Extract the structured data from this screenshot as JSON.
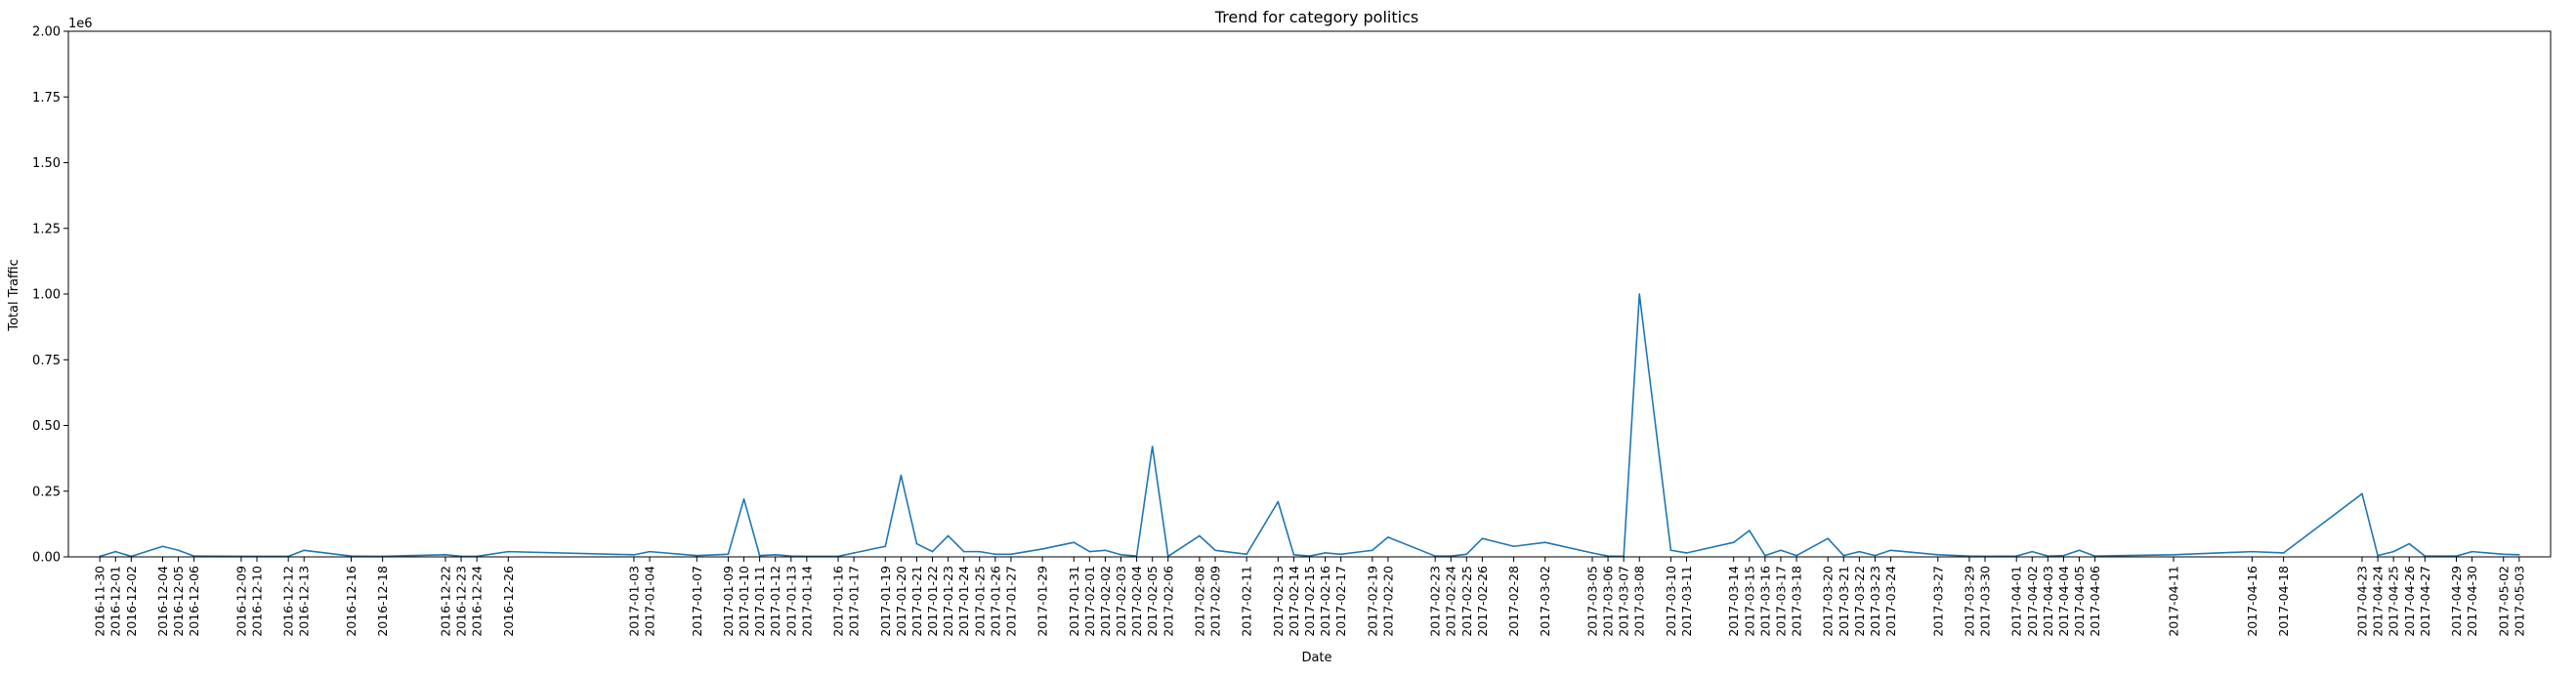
{
  "chart_data": {
    "type": "line",
    "title": "Trend for category politics",
    "xlabel": "Date",
    "ylabel": "Total Traffic",
    "y_offset_label": "1e6",
    "ylim": [
      0,
      2000000
    ],
    "yticks": [
      0,
      250000,
      500000,
      750000,
      1000000,
      1250000,
      1500000,
      1750000,
      2000000
    ],
    "ytick_labels": [
      "0.00",
      "0.25",
      "0.50",
      "0.75",
      "1.00",
      "1.25",
      "1.50",
      "1.75",
      "2.00"
    ],
    "xlim": [
      "2016-11-28",
      "2017-05-05"
    ],
    "grid": false,
    "line_color": "#1f77b4",
    "x": [
      "2016-11-30",
      "2016-12-01",
      "2016-12-02",
      "2016-12-04",
      "2016-12-05",
      "2016-12-06",
      "2016-12-09",
      "2016-12-10",
      "2016-12-12",
      "2016-12-13",
      "2016-12-16",
      "2016-12-18",
      "2016-12-22",
      "2016-12-23",
      "2016-12-24",
      "2016-12-26",
      "2017-01-03",
      "2017-01-04",
      "2017-01-07",
      "2017-01-09",
      "2017-01-10",
      "2017-01-11",
      "2017-01-12",
      "2017-01-13",
      "2017-01-14",
      "2017-01-16",
      "2017-01-17",
      "2017-01-19",
      "2017-01-20",
      "2017-01-21",
      "2017-01-22",
      "2017-01-23",
      "2017-01-24",
      "2017-01-25",
      "2017-01-26",
      "2017-01-27",
      "2017-01-29",
      "2017-01-31",
      "2017-02-01",
      "2017-02-02",
      "2017-02-03",
      "2017-02-04",
      "2017-02-05",
      "2017-02-06",
      "2017-02-08",
      "2017-02-09",
      "2017-02-11",
      "2017-02-13",
      "2017-02-14",
      "2017-02-15",
      "2017-02-16",
      "2017-02-17",
      "2017-02-19",
      "2017-02-20",
      "2017-02-23",
      "2017-02-24",
      "2017-02-25",
      "2017-02-26",
      "2017-02-28",
      "2017-03-02",
      "2017-03-05",
      "2017-03-06",
      "2017-03-07",
      "2017-03-08",
      "2017-03-10",
      "2017-03-11",
      "2017-03-14",
      "2017-03-15",
      "2017-03-16",
      "2017-03-17",
      "2017-03-18",
      "2017-03-20",
      "2017-03-21",
      "2017-03-22",
      "2017-03-23",
      "2017-03-24",
      "2017-03-27",
      "2017-03-29",
      "2017-03-30",
      "2017-04-01",
      "2017-04-02",
      "2017-04-03",
      "2017-04-04",
      "2017-04-05",
      "2017-04-06",
      "2017-04-11",
      "2017-04-16",
      "2017-04-18",
      "2017-04-23",
      "2017-04-24",
      "2017-04-25",
      "2017-04-26",
      "2017-04-27",
      "2017-04-29",
      "2017-04-30",
      "2017-05-02",
      "2017-05-03"
    ],
    "y": [
      2000,
      20000,
      2000,
      40000,
      25000,
      3000,
      2000,
      2000,
      2000,
      25000,
      3000,
      2000,
      8000,
      2000,
      2000,
      20000,
      8000,
      20000,
      5000,
      10000,
      220000,
      5000,
      8000,
      3000,
      2000,
      2000,
      15000,
      40000,
      310000,
      50000,
      20000,
      80000,
      20000,
      20000,
      10000,
      10000,
      30000,
      55000,
      20000,
      25000,
      8000,
      3000,
      420000,
      2000,
      80000,
      25000,
      10000,
      210000,
      8000,
      3000,
      15000,
      10000,
      25000,
      75000,
      3000,
      3000,
      10000,
      70000,
      40000,
      55000,
      15000,
      3000,
      2000,
      1000000,
      25000,
      15000,
      55000,
      100000,
      5000,
      25000,
      5000,
      70000,
      5000,
      20000,
      5000,
      25000,
      8000,
      3000,
      2000,
      3000,
      20000,
      3000,
      5000,
      25000,
      3000,
      8000,
      20000,
      15000,
      240000,
      5000,
      20000,
      50000,
      3000,
      3000,
      20000,
      10000,
      8000
    ]
  }
}
